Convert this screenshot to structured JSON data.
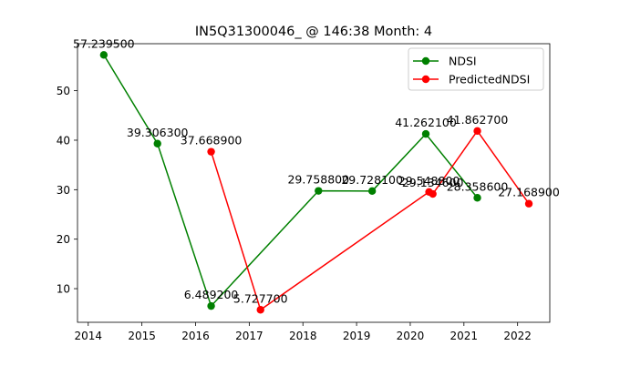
{
  "chart_data": {
    "type": "line",
    "title": "IN5Q31300046_ @ 146:38 Month: 4",
    "xlabel": "",
    "ylabel": "",
    "xlim": [
      2013.8,
      2022.6
    ],
    "ylim": [
      3.2,
      59.5
    ],
    "x_ticks": [
      2014,
      2015,
      2016,
      2017,
      2018,
      2019,
      2020,
      2021,
      2022
    ],
    "y_ticks": [
      10,
      20,
      30,
      40,
      50
    ],
    "grid": false,
    "legend_position": "top-right",
    "series": [
      {
        "name": "NDSI",
        "color": "#008000",
        "points": [
          {
            "x": 2014.29,
            "y": 57.2395,
            "label": "57.239500"
          },
          {
            "x": 2015.29,
            "y": 39.3063,
            "label": "39.306300"
          },
          {
            "x": 2016.29,
            "y": 6.4892,
            "label": "6.489200"
          },
          {
            "x": 2018.29,
            "y": 29.7588,
            "label": "29.758800"
          },
          {
            "x": 2019.29,
            "y": 29.7281,
            "label": "29.728100"
          },
          {
            "x": 2020.29,
            "y": 41.2621,
            "label": "41.262100"
          },
          {
            "x": 2021.25,
            "y": 28.3586,
            "label": "28.358600"
          }
        ]
      },
      {
        "name": "PredictedNDSI",
        "color": "#ff0000",
        "points": [
          {
            "x": 2016.29,
            "y": 37.6689,
            "label": "37.668900"
          },
          {
            "x": 2017.21,
            "y": 5.7277,
            "label": "5.727700"
          },
          {
            "x": 2020.35,
            "y": 29.5488,
            "label": "29.548800"
          },
          {
            "x": 2020.42,
            "y": 29.1346,
            "label": "29.134600"
          },
          {
            "x": 2021.25,
            "y": 41.8627,
            "label": "41.862700"
          },
          {
            "x": 2022.21,
            "y": 27.1689,
            "label": "27.168900"
          }
        ]
      }
    ]
  }
}
